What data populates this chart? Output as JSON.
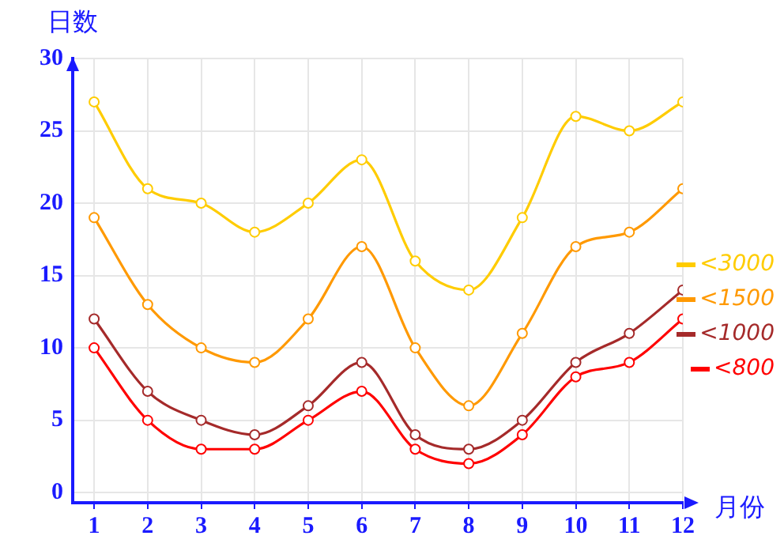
{
  "chart_data": {
    "type": "line",
    "xlabel": "月份",
    "ylabel": "日数",
    "x": [
      1,
      2,
      3,
      4,
      5,
      6,
      7,
      8,
      9,
      10,
      11,
      12
    ],
    "xlim": [
      0.6,
      12
    ],
    "xticks": [
      1,
      2,
      3,
      4,
      5,
      6,
      7,
      8,
      9,
      10,
      11,
      12
    ],
    "ylim": [
      -0.7,
      30
    ],
    "yticks": [
      0,
      5,
      10,
      15,
      20,
      25,
      30
    ],
    "series": [
      {
        "name": "<3000",
        "color": "#ffcc00",
        "values": [
          27,
          21,
          20,
          18,
          20,
          23,
          16,
          14,
          19,
          26,
          25,
          27
        ]
      },
      {
        "name": "<1500",
        "color": "#ff9900",
        "values": [
          19,
          13,
          10,
          9,
          12,
          17,
          10,
          6,
          11,
          17,
          18,
          21
        ]
      },
      {
        "name": "<1000",
        "color": "#a52a2a",
        "values": [
          12,
          7,
          5,
          4,
          6,
          9,
          4,
          3,
          5,
          9,
          11,
          14
        ]
      },
      {
        "name": "<800",
        "color": "#ff0000",
        "values": [
          10,
          5,
          3,
          3,
          5,
          7,
          3,
          2,
          4,
          8,
          9,
          12
        ]
      }
    ],
    "grid": true,
    "legend": "right",
    "marker": "circle",
    "line_style": "solid"
  }
}
